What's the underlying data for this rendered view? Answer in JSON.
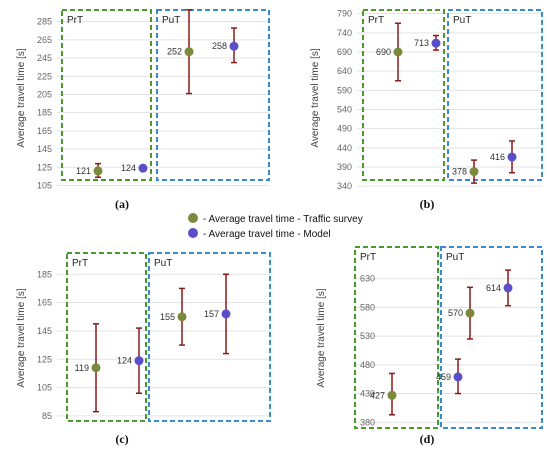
{
  "chart_data": [
    {
      "type": "scatter",
      "panel_caption": "(a)",
      "ylabel": "Average travel time [s]",
      "yticks": [
        105,
        125,
        145,
        165,
        185,
        205,
        225,
        245,
        265,
        285
      ],
      "ylim": [
        100,
        300
      ],
      "groups": [
        "PrT",
        "PuT"
      ],
      "points": [
        {
          "group": "PrT",
          "kind": "survey",
          "value": 121,
          "label": "121",
          "err_low": 114,
          "err_high": 129
        },
        {
          "group": "PrT",
          "kind": "model",
          "value": 124,
          "label": "124",
          "err_low": null,
          "err_high": null
        },
        {
          "group": "PuT",
          "kind": "survey",
          "value": 252,
          "label": "252",
          "err_low": 206,
          "err_high": 298
        },
        {
          "group": "PuT",
          "kind": "model",
          "value": 258,
          "label": "258",
          "err_low": 240,
          "err_high": 278
        }
      ]
    },
    {
      "type": "scatter",
      "panel_caption": "(b)",
      "ylabel": "Average travel time [s]",
      "yticks": [
        340,
        390,
        440,
        490,
        540,
        590,
        640,
        690,
        740,
        790
      ],
      "ylim": [
        330,
        810
      ],
      "groups": [
        "PrT",
        "PuT"
      ],
      "points": [
        {
          "group": "PrT",
          "kind": "survey",
          "value": 690,
          "label": "690",
          "err_low": 615,
          "err_high": 765
        },
        {
          "group": "PrT",
          "kind": "model",
          "value": 713,
          "label": "713",
          "err_low": 695,
          "err_high": 733
        },
        {
          "group": "PuT",
          "kind": "survey",
          "value": 378,
          "label": "378",
          "err_low": 348,
          "err_high": 408
        },
        {
          "group": "PuT",
          "kind": "model",
          "value": 416,
          "label": "416",
          "err_low": 375,
          "err_high": 458
        }
      ]
    },
    {
      "type": "scatter",
      "panel_caption": "(c)",
      "ylabel": "Average travel time [s]",
      "yticks": [
        85,
        105,
        125,
        145,
        165,
        185
      ],
      "ylim": [
        80,
        200
      ],
      "groups": [
        "PrT",
        "PuT"
      ],
      "points": [
        {
          "group": "PrT",
          "kind": "survey",
          "value": 119,
          "label": "119",
          "err_low": 88,
          "err_high": 150
        },
        {
          "group": "PrT",
          "kind": "model",
          "value": 124,
          "label": "124",
          "err_low": 101,
          "err_high": 147
        },
        {
          "group": "PuT",
          "kind": "survey",
          "value": 155,
          "label": "155",
          "err_low": 135,
          "err_high": 175
        },
        {
          "group": "PuT",
          "kind": "model",
          "value": 157,
          "label": "157",
          "err_low": 129,
          "err_high": 185
        }
      ]
    },
    {
      "type": "scatter",
      "panel_caption": "(d)",
      "ylabel": "Average travel time [s]",
      "yticks": [
        380,
        430,
        480,
        530,
        580,
        630
      ],
      "ylim": [
        370,
        680
      ],
      "groups": [
        "PrT",
        "PuT"
      ],
      "points": [
        {
          "group": "PrT",
          "kind": "survey",
          "value": 427,
          "label": "427",
          "err_low": 393,
          "err_high": 465
        },
        {
          "group": "PrT",
          "kind": "model",
          "value": 459,
          "label": "459",
          "err_low": 430,
          "err_high": 490
        },
        {
          "group": "PuT",
          "kind": "survey",
          "value": 570,
          "label": "570",
          "err_low": 525,
          "err_high": 615
        },
        {
          "group": "PuT",
          "kind": "model",
          "value": 614,
          "label": "614",
          "err_low": 583,
          "err_high": 645
        }
      ]
    }
  ],
  "legend": [
    {
      "kind": "survey",
      "label": "- Average travel time - Traffic survey"
    },
    {
      "kind": "model",
      "label": "- Average travel time - Model"
    }
  ],
  "colors": {
    "survey": "#7a8a3c",
    "model": "#5a4fc8",
    "errorbar": "#8b1a1a",
    "prt_box": "#4a9a2a",
    "put_box": "#3a8ad0",
    "grid": "#e3e3e3"
  }
}
